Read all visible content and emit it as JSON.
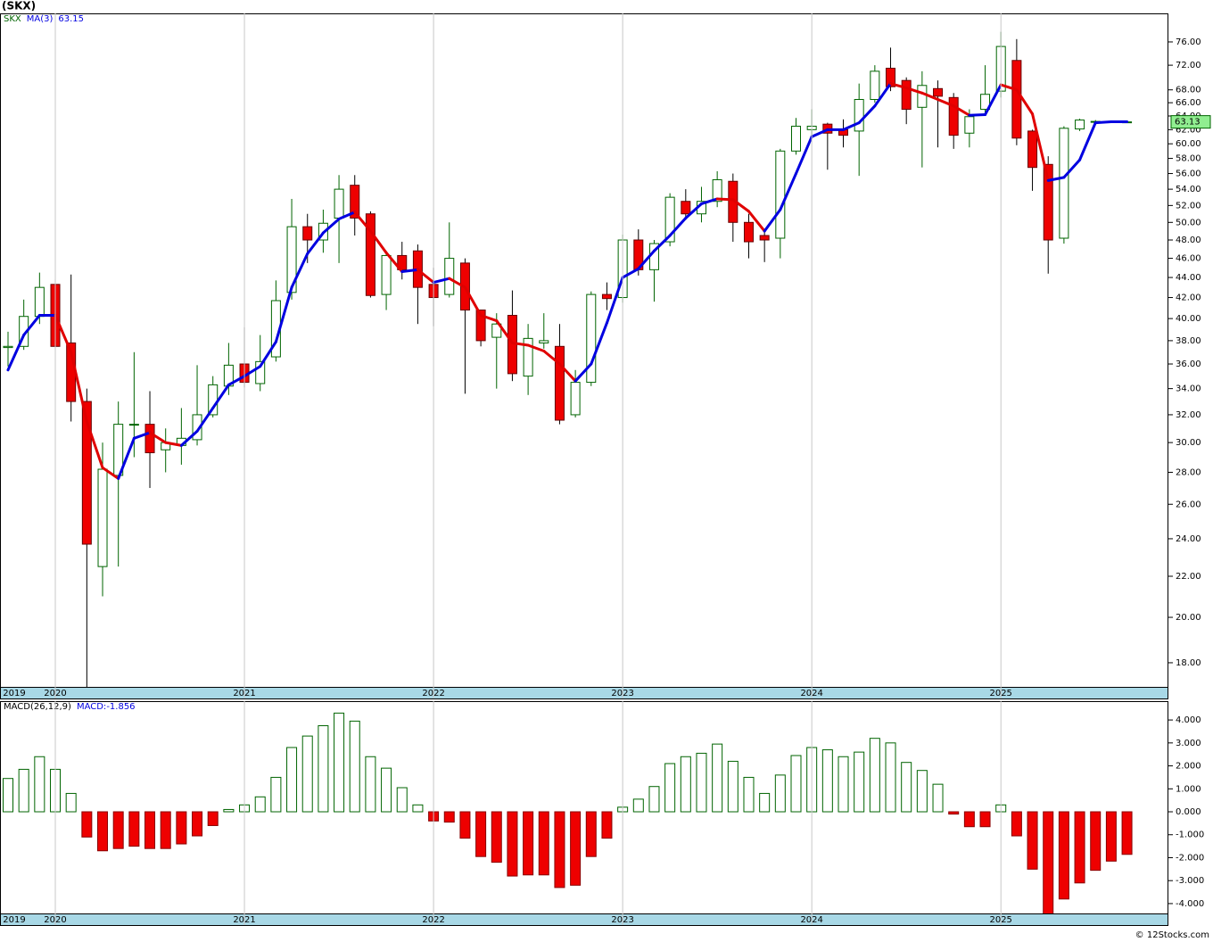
{
  "chart_data": [
    {
      "type": "candlestick",
      "title": "(SKX)",
      "symbol": "SKX",
      "log_scale": true,
      "up_color": "#006400",
      "down_color": "#ee0000",
      "categories": [
        "2019",
        null,
        null,
        "2020",
        null,
        null,
        null,
        null,
        null,
        null,
        null,
        null,
        null,
        null,
        null,
        "2021",
        null,
        null,
        null,
        null,
        null,
        null,
        null,
        null,
        null,
        null,
        null,
        "2022",
        null,
        null,
        null,
        null,
        null,
        null,
        null,
        null,
        null,
        null,
        null,
        "2023",
        null,
        null,
        null,
        null,
        null,
        null,
        null,
        null,
        null,
        null,
        null,
        "2024",
        null,
        null,
        null,
        null,
        null,
        null,
        null,
        null,
        null,
        null,
        null,
        "2025",
        null,
        null,
        null,
        null,
        null,
        null,
        null,
        null
      ],
      "open": [
        37.4,
        37.5,
        40.2,
        43.3,
        37.8,
        33,
        22.5,
        27.8,
        31.3,
        31.3,
        29.5,
        29.8,
        30.2,
        32,
        34.2,
        36,
        34.4,
        36.6,
        42.5,
        49.5,
        48,
        50.5,
        54.5,
        51,
        42.3,
        46.3,
        46.8,
        43.3,
        42.3,
        45.5,
        40.8,
        38.3,
        40.3,
        35,
        37.8,
        37.5,
        32,
        34.5,
        42.3,
        42,
        48,
        44.8,
        47.8,
        52.5,
        51,
        52.5,
        55,
        50,
        48.5,
        48.2,
        59,
        62,
        62.8,
        62,
        61.8,
        66.5,
        71.5,
        69.5,
        65.3,
        68.2,
        66.8,
        61.5,
        65,
        67.8,
        72.8,
        61.8,
        57.2,
        48.2,
        62.1,
        63.1,
        63.2,
        63.13
      ],
      "high": [
        38.8,
        41.8,
        44.5,
        43.8,
        44.3,
        34,
        30,
        33,
        37,
        33.8,
        31,
        32.5,
        35.9,
        35,
        37.8,
        39.2,
        38.5,
        43.7,
        52.8,
        51,
        51.5,
        55.8,
        55.8,
        51.3,
        46.8,
        47.8,
        47.5,
        45,
        50,
        46,
        40.8,
        40.5,
        42.7,
        39.5,
        40.5,
        39.5,
        35.5,
        42.6,
        43.5,
        48.6,
        49.2,
        48,
        53.5,
        54,
        54.3,
        56.3,
        56,
        51,
        49,
        59.3,
        63.7,
        65,
        63,
        63.5,
        69,
        72,
        75,
        70,
        71,
        69.5,
        67.5,
        65,
        72,
        77.8,
        76.5,
        62,
        58.3,
        62.5,
        63.6,
        63.4,
        63.25,
        63.2
      ],
      "low": [
        35.8,
        37.2,
        39.5,
        37.2,
        31.5,
        16.8,
        21,
        22.5,
        29,
        27,
        28,
        28.5,
        29.8,
        31.8,
        33.5,
        34.1,
        33.8,
        36.2,
        41.8,
        45.5,
        46.6,
        45.5,
        48.5,
        42,
        40.8,
        43.8,
        39.5,
        39.3,
        42,
        33.6,
        37.5,
        34,
        34.6,
        33.5,
        37.3,
        31.3,
        31.8,
        34.2,
        40.8,
        41.5,
        44.2,
        41.6,
        47.3,
        50.3,
        50,
        51.8,
        47.8,
        46,
        45.6,
        46,
        58.5,
        61,
        56.5,
        59.5,
        55.7,
        66,
        67.8,
        62.8,
        56.8,
        59.5,
        59.3,
        59.5,
        64.2,
        66.8,
        59.8,
        53.8,
        44.4,
        47.6,
        61.8,
        62.9,
        63.05,
        63.05
      ],
      "close": [
        37.5,
        40.2,
        43,
        37.5,
        33,
        23.7,
        28.2,
        31.3,
        31.3,
        29.3,
        30,
        30.3,
        32,
        34.3,
        35.9,
        34.5,
        36.2,
        41.7,
        49.5,
        48,
        49.9,
        54,
        50.5,
        42.2,
        46.3,
        44.8,
        43,
        42,
        46,
        40.8,
        38,
        39.5,
        35.2,
        38.2,
        38,
        31.6,
        34.5,
        42.3,
        41.9,
        48,
        44.8,
        47.6,
        53,
        51,
        52.5,
        55.2,
        50,
        47.8,
        48,
        59,
        62.5,
        62.5,
        61.5,
        61.2,
        66.5,
        71,
        68.5,
        65,
        68.7,
        67,
        61.2,
        63.9,
        67.3,
        75.2,
        60.8,
        56.8,
        48,
        62.2,
        63.4,
        63.2,
        63.13,
        63.13
      ],
      "series": [
        {
          "name": "MA(3)",
          "color": "#0000e0",
          "down_color": "#e00000",
          "values": [
            35.5,
            38.5,
            40.3,
            40.3,
            37,
            31.5,
            28.3,
            27.6,
            30.3,
            30.7,
            30,
            29.8,
            30.8,
            32.5,
            34.3,
            35,
            35.8,
            37.9,
            43,
            46.5,
            48.8,
            50.4,
            51.2,
            49,
            46.6,
            44.6,
            44.8,
            43.5,
            43.9,
            43,
            40.3,
            39.8,
            37.8,
            37.6,
            37.1,
            36,
            34.6,
            36,
            39.6,
            44,
            44.9,
            46.8,
            48.5,
            50.5,
            52.2,
            52.8,
            52.7,
            51.3,
            49,
            51.5,
            56,
            61,
            62,
            62,
            63,
            65.5,
            69,
            68.3,
            67.5,
            66.5,
            65.5,
            64.1,
            64.2,
            68.8,
            68,
            64.3,
            55.1,
            55.5,
            57.8,
            63,
            63.15,
            63.15
          ]
        }
      ],
      "ylim": [
        17.02,
        81.2
      ],
      "yticks": [
        {
          "value": 18,
          "label": "18.00"
        },
        {
          "value": 20,
          "label": "20.00"
        },
        {
          "value": 22,
          "label": "22.00"
        },
        {
          "value": 24,
          "label": "24.00"
        },
        {
          "value": 26,
          "label": "26.00"
        },
        {
          "value": 28,
          "label": "28.00"
        },
        {
          "value": 30,
          "label": "30.00"
        },
        {
          "value": 32,
          "label": "32.00"
        },
        {
          "value": 34,
          "label": "34.00"
        },
        {
          "value": 36,
          "label": "36.00"
        },
        {
          "value": 38,
          "label": "38.00"
        },
        {
          "value": 40,
          "label": "40.00"
        },
        {
          "value": 42,
          "label": "42.00"
        },
        {
          "value": 44,
          "label": "44.00"
        },
        {
          "value": 46,
          "label": "46.00"
        },
        {
          "value": 48,
          "label": "48.00"
        },
        {
          "value": 50,
          "label": "50.00"
        },
        {
          "value": 52,
          "label": "52.00"
        },
        {
          "value": 54,
          "label": "54.00"
        },
        {
          "value": 56,
          "label": "56.00"
        },
        {
          "value": 58,
          "label": "58.00"
        },
        {
          "value": 60,
          "label": "60.00"
        },
        {
          "value": 62,
          "label": "62.00"
        },
        {
          "value": 64,
          "label": "64.00"
        },
        {
          "value": 66,
          "label": "66.00"
        },
        {
          "value": 68,
          "label": "68.00"
        },
        {
          "value": 72,
          "label": "72.00"
        },
        {
          "value": 76,
          "label": "76.00"
        }
      ]
    },
    {
      "type": "bar",
      "title": "MACD(26,12,9)",
      "value_prefix": "MACD:",
      "color": "#006400",
      "down_color": "#ee0000",
      "values": [
        1.45,
        1.85,
        2.4,
        1.85,
        0.8,
        -1.1,
        -1.7,
        -1.6,
        -1.5,
        -1.6,
        -1.6,
        -1.4,
        -1.05,
        -0.6,
        0.1,
        0.3,
        0.65,
        1.5,
        2.8,
        3.3,
        3.75,
        4.3,
        3.95,
        2.4,
        1.9,
        1.05,
        0.3,
        -0.4,
        -0.45,
        -1.15,
        -1.95,
        -2.2,
        -2.8,
        -2.75,
        -2.75,
        -3.3,
        -3.2,
        -1.95,
        -1.15,
        0.2,
        0.55,
        1.1,
        2.1,
        2.4,
        2.55,
        2.95,
        2.2,
        1.5,
        0.8,
        1.6,
        2.45,
        2.8,
        2.7,
        2.4,
        2.6,
        3.2,
        3.0,
        2.15,
        1.8,
        1.2,
        -0.1,
        -0.65,
        -0.65,
        0.3,
        -1.05,
        -2.5,
        -4.5,
        -3.8,
        -3.1,
        -2.55,
        -2.15,
        -1.856
      ],
      "ylim": [
        -4.43,
        4.82
      ],
      "yticks": [
        {
          "value": 4,
          "label": "4.000"
        },
        {
          "value": 3,
          "label": "3.000"
        },
        {
          "value": 2,
          "label": "2.000"
        },
        {
          "value": 1,
          "label": "1.000"
        },
        {
          "value": 0,
          "label": "0.000"
        },
        {
          "value": -1,
          "label": "-1.000"
        },
        {
          "value": -2,
          "label": "-2.000"
        },
        {
          "value": -3,
          "label": "-3.000"
        },
        {
          "value": -4,
          "label": "-4.000"
        }
      ]
    }
  ],
  "watermark": "© 12Stocks.com"
}
